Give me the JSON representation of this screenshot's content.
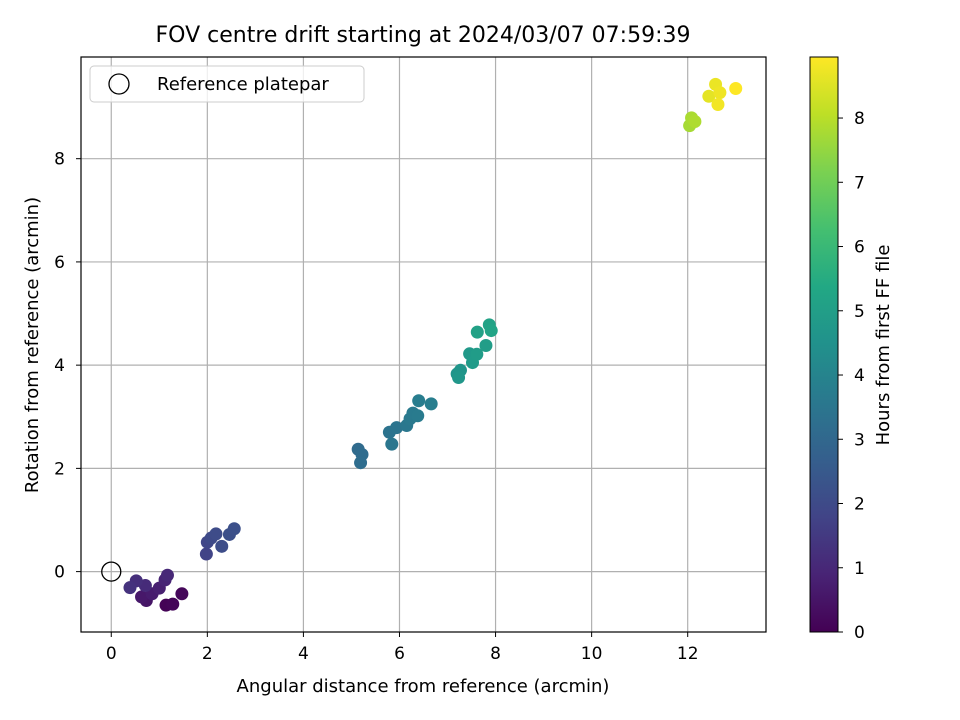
{
  "chart_data": {
    "type": "scatter",
    "title": "FOV centre drift starting at 2024/03/07 07:59:39",
    "xlabel": "Angular distance from reference (arcmin)",
    "ylabel": "Rotation from reference (arcmin)",
    "xlim": [
      -0.63,
      13.63
    ],
    "ylim": [
      -1.17,
      9.97
    ],
    "xticks": [
      0,
      2,
      4,
      6,
      8,
      10,
      12
    ],
    "yticks": [
      0,
      2,
      4,
      6,
      8
    ],
    "grid": true,
    "legend": {
      "location": "upper-left",
      "entries": [
        "Reference platepar"
      ]
    },
    "reference_point": {
      "label": "Reference platepar",
      "x": 0,
      "y": 0,
      "marker": "open-circle"
    },
    "colorbar": {
      "label": "Hours from first FF file",
      "colormap": "viridis",
      "range": [
        0,
        8.95
      ],
      "ticks": [
        0,
        1,
        2,
        3,
        4,
        5,
        6,
        7,
        8
      ]
    },
    "series": [
      {
        "points": [
          {
            "x": 1.14,
            "y": -0.65,
            "h": 0.05
          },
          {
            "x": 1.28,
            "y": -0.63,
            "h": 0.1
          },
          {
            "x": 1.47,
            "y": -0.43,
            "h": 0.15
          },
          {
            "x": 0.73,
            "y": -0.56,
            "h": 0.5
          },
          {
            "x": 0.63,
            "y": -0.49,
            "h": 0.6
          },
          {
            "x": 0.85,
            "y": -0.43,
            "h": 0.7
          },
          {
            "x": 1.0,
            "y": -0.32,
            "h": 0.8
          },
          {
            "x": 1.12,
            "y": -0.16,
            "h": 0.9
          },
          {
            "x": 1.17,
            "y": -0.07,
            "h": 1.0
          },
          {
            "x": 0.71,
            "y": -0.27,
            "h": 1.1
          },
          {
            "x": 0.52,
            "y": -0.18,
            "h": 1.2
          },
          {
            "x": 0.39,
            "y": -0.31,
            "h": 1.3
          },
          {
            "x": 1.98,
            "y": 0.34,
            "h": 1.8
          },
          {
            "x": 2.0,
            "y": 0.57,
            "h": 1.9
          },
          {
            "x": 2.08,
            "y": 0.65,
            "h": 2.0
          },
          {
            "x": 2.18,
            "y": 0.73,
            "h": 2.05
          },
          {
            "x": 2.3,
            "y": 0.49,
            "h": 2.1
          },
          {
            "x": 2.46,
            "y": 0.72,
            "h": 2.15
          },
          {
            "x": 2.56,
            "y": 0.83,
            "h": 2.2
          },
          {
            "x": 5.14,
            "y": 2.37,
            "h": 3.1
          },
          {
            "x": 5.22,
            "y": 2.27,
            "h": 3.15
          },
          {
            "x": 5.19,
            "y": 2.11,
            "h": 3.2
          },
          {
            "x": 5.79,
            "y": 2.7,
            "h": 3.4
          },
          {
            "x": 5.94,
            "y": 2.79,
            "h": 3.45
          },
          {
            "x": 5.84,
            "y": 2.47,
            "h": 3.5
          },
          {
            "x": 6.15,
            "y": 2.83,
            "h": 3.55
          },
          {
            "x": 6.22,
            "y": 2.96,
            "h": 3.6
          },
          {
            "x": 6.28,
            "y": 3.07,
            "h": 3.65
          },
          {
            "x": 6.38,
            "y": 3.02,
            "h": 3.7
          },
          {
            "x": 6.4,
            "y": 3.31,
            "h": 3.75
          },
          {
            "x": 6.66,
            "y": 3.25,
            "h": 3.8
          },
          {
            "x": 7.2,
            "y": 3.83,
            "h": 4.6
          },
          {
            "x": 7.27,
            "y": 3.9,
            "h": 4.65
          },
          {
            "x": 7.23,
            "y": 3.76,
            "h": 4.7
          },
          {
            "x": 7.46,
            "y": 4.22,
            "h": 4.8
          },
          {
            "x": 7.52,
            "y": 4.05,
            "h": 4.85
          },
          {
            "x": 7.61,
            "y": 4.21,
            "h": 4.9
          },
          {
            "x": 7.8,
            "y": 4.38,
            "h": 4.95
          },
          {
            "x": 7.62,
            "y": 4.64,
            "h": 5.1
          },
          {
            "x": 7.87,
            "y": 4.78,
            "h": 5.15
          },
          {
            "x": 7.91,
            "y": 4.67,
            "h": 5.2
          },
          {
            "x": 12.04,
            "y": 8.64,
            "h": 7.75
          },
          {
            "x": 12.08,
            "y": 8.79,
            "h": 7.8
          },
          {
            "x": 12.15,
            "y": 8.72,
            "h": 7.85
          },
          {
            "x": 12.44,
            "y": 9.21,
            "h": 8.6
          },
          {
            "x": 12.58,
            "y": 9.44,
            "h": 8.7
          },
          {
            "x": 12.67,
            "y": 9.28,
            "h": 8.75
          },
          {
            "x": 12.63,
            "y": 9.05,
            "h": 8.8
          },
          {
            "x": 13.0,
            "y": 9.36,
            "h": 8.95
          }
        ]
      }
    ]
  }
}
